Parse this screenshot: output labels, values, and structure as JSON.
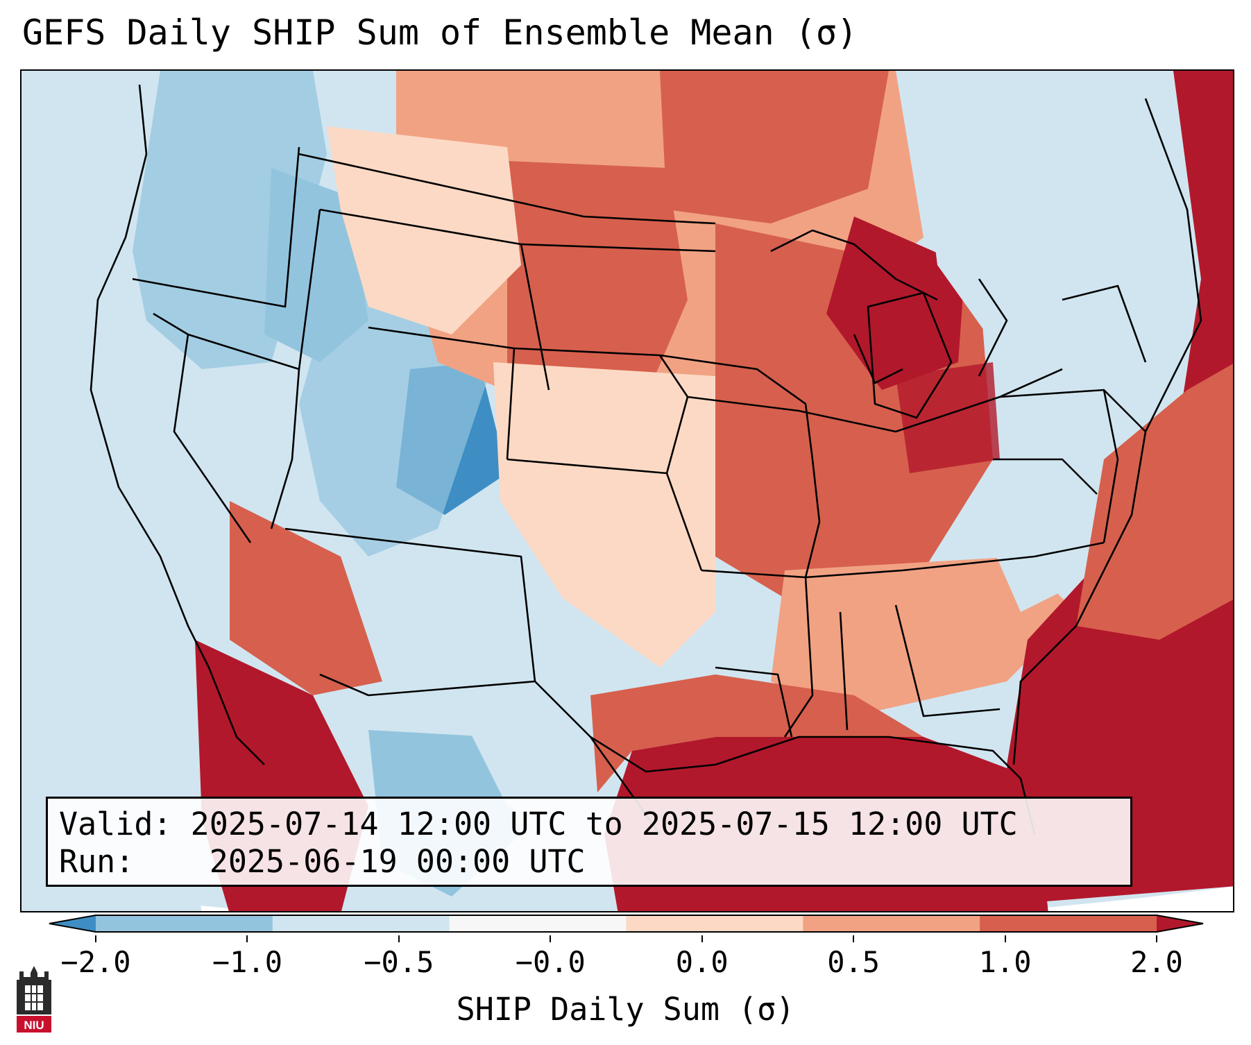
{
  "title": "GEFS Daily SHIP Sum of Ensemble Mean (σ)",
  "info": {
    "valid_label": "Valid:",
    "valid_value": "2025-07-14 12:00 UTC to 2025-07-15 12:00 UTC",
    "run_label": "Run:",
    "run_value": "2025-06-19 00:00 UTC"
  },
  "colorbar": {
    "label": "SHIP Daily Sum (σ)",
    "ticks": [
      "−2.0",
      "−1.0",
      "−0.5",
      "−0.0",
      "0.0",
      "0.5",
      "1.0",
      "2.0"
    ],
    "colors": [
      "#3e8ec4",
      "#93c4de",
      "#d1e5f0",
      "#f7f7f7",
      "#fcd9c5",
      "#f1a283",
      "#d6604d",
      "#b2182b"
    ],
    "extend": "both"
  },
  "logo": {
    "text": "NIU"
  }
}
